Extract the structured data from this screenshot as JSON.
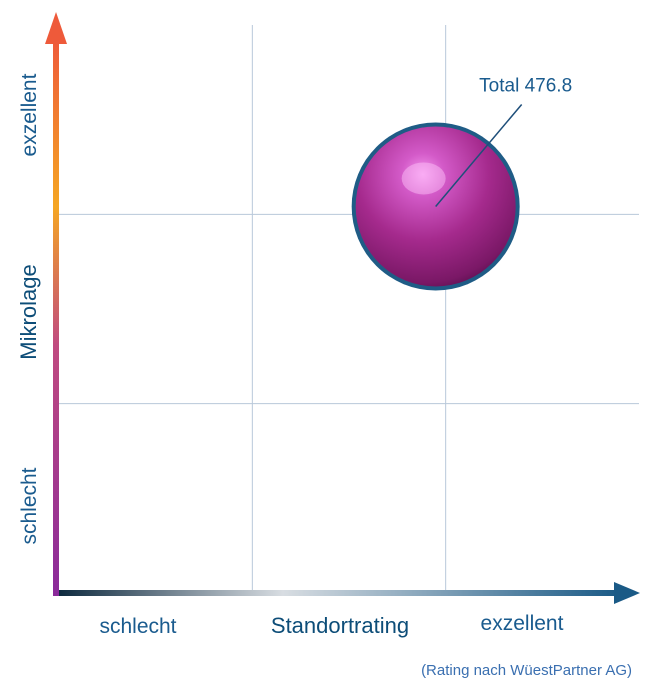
{
  "chart_data": {
    "type": "scatter",
    "title": "",
    "xlabel": "Standortrating",
    "ylabel": "Mikrolage",
    "x_tick_labels": [
      "schlecht",
      "exzellent"
    ],
    "y_tick_labels": [
      "schlecht",
      "exzellent"
    ],
    "xlim": [
      0,
      3
    ],
    "ylim": [
      0,
      3
    ],
    "grid": true,
    "points": [
      {
        "x": 2.0,
        "y": 2.2,
        "value": 476.8,
        "label": "Total 476.8"
      }
    ],
    "note": "(Rating nach WüestPartner AG)"
  },
  "colors": {
    "x_axis_start": "#0e2a3f",
    "x_axis_end": "#1a5a86",
    "y_axis_bottom": "#8a2a9a",
    "y_axis_mid": "#f5a623",
    "y_axis_top": "#ee5a3a",
    "grid": "#b8c8da",
    "axis_title": "#0d4d78",
    "tick_label": "#1a5b8e",
    "bubble_center": "#f08ef0",
    "bubble_edge": "#6a1458",
    "bubble_rim": "#1f5c86"
  }
}
